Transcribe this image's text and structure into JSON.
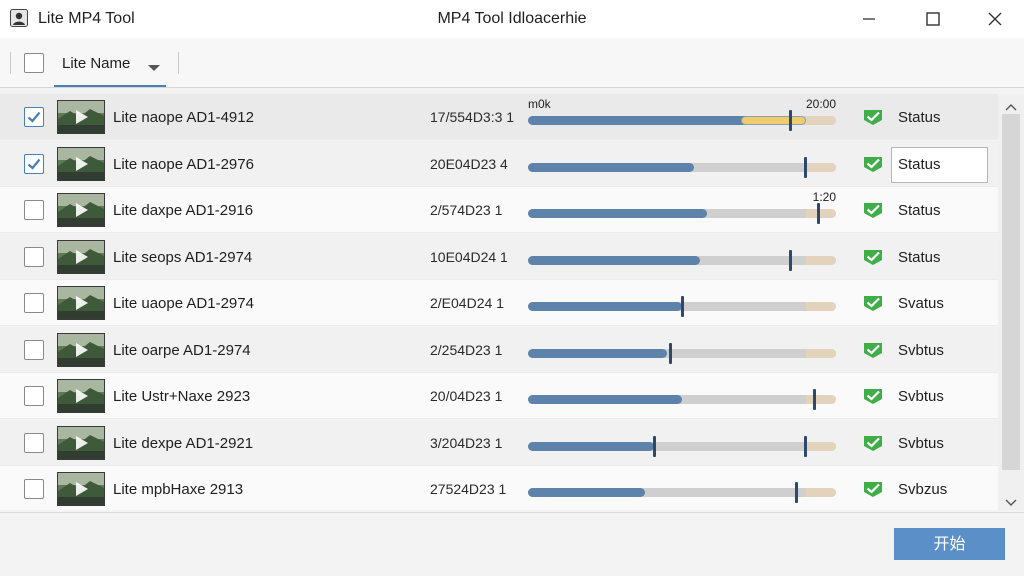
{
  "window": {
    "app_title": "Lite MP4 Tool",
    "title": "MP4 Tool Idloacerhie"
  },
  "header": {
    "column_label": "Lite Name"
  },
  "rows": [
    {
      "name": "Lite naope AD1-4912",
      "date": "17/554D3:3 1",
      "checked": true,
      "progress": 0.84,
      "highlight": [
        0.69,
        0.9
      ],
      "marker": 0.85,
      "label_left": "m0k",
      "label_right": "20:00",
      "status": "Status",
      "status_boxed": false
    },
    {
      "name": "Lite naope AD1-2976",
      "date": "20E04D23 4",
      "checked": true,
      "progress": 0.54,
      "marker": 0.9,
      "status": "Status",
      "status_boxed": true
    },
    {
      "name": "Lite daxpe AD1-2916",
      "date": "2/574D23 1",
      "checked": false,
      "progress": 0.58,
      "marker": 0.94,
      "label_right": "1:20",
      "status": "Status",
      "status_boxed": false
    },
    {
      "name": "Lite seops AD1-2974",
      "date": "10E04D24 1",
      "checked": false,
      "progress": 0.56,
      "marker": 0.85,
      "status": "Status",
      "status_boxed": false
    },
    {
      "name": "Lite uaope AD1-2974",
      "date": "2/E04D24 1",
      "checked": false,
      "progress": 0.5,
      "marker": 0.5,
      "status": "Svatus",
      "status_boxed": false
    },
    {
      "name": "Lite oarpe AD1-2974",
      "date": "2/254D23 1",
      "checked": false,
      "progress": 0.45,
      "marker": 0.46,
      "status": "Svbtus",
      "status_boxed": false
    },
    {
      "name": "Lite Ustr+Naxe 2923",
      "date": "20/04D23 1",
      "checked": false,
      "progress": 0.5,
      "marker": 0.93,
      "status": "Svbtus",
      "status_boxed": false
    },
    {
      "name": "Lite dexpe AD1-2921",
      "date": "3/204D23 1",
      "checked": false,
      "progress": 0.41,
      "marker": 0.9,
      "marker2": 0.41,
      "status": "Svbtus",
      "status_boxed": false
    },
    {
      "name": "Lite mpbHaxe 2913",
      "date": "27524D23 1",
      "checked": false,
      "progress": 0.38,
      "marker": 0.87,
      "status": "Svbzus",
      "status_boxed": false
    }
  ],
  "footer": {
    "start_label": "开始"
  },
  "colors": {
    "accent": "#5b8fc7",
    "progress_fill": "#5d83ab",
    "status_check": "#3fae49",
    "highlight": "#f0cc6a"
  },
  "icons": {
    "app": "app-user-icon",
    "minimize": "minimize-icon",
    "maximize": "maximize-icon",
    "close": "close-icon",
    "status": "check-badge-icon",
    "thumbnail": "video-thumbnail-icon"
  }
}
